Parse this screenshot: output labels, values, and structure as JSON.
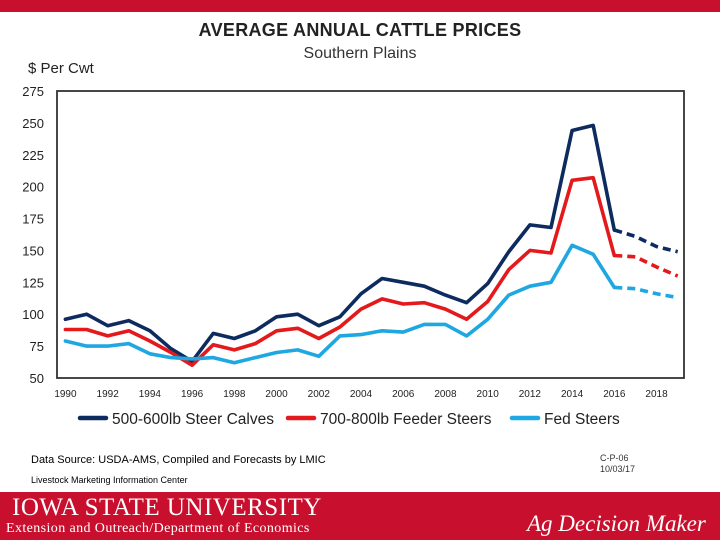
{
  "chart_data": {
    "type": "line",
    "title": "AVERAGE ANNUAL CATTLE PRICES",
    "subtitle": "Southern Plains",
    "ylabel": "$ Per Cwt",
    "xlabel": "",
    "ylim": [
      50,
      275
    ],
    "xlim": [
      1989.6,
      2019.3
    ],
    "yticks": [
      50,
      75,
      100,
      125,
      150,
      175,
      200,
      225,
      250,
      275
    ],
    "xticks": [
      1990,
      1992,
      1994,
      1996,
      1998,
      2000,
      2002,
      2004,
      2006,
      2008,
      2010,
      2012,
      2014,
      2016,
      2018
    ],
    "legend_position": "bottom",
    "series": [
      {
        "name": "500-600lb Steer Calves",
        "color": "#0d2b5e",
        "x": [
          1990,
          1991,
          1992,
          1993,
          1994,
          1995,
          1996,
          1997,
          1998,
          1999,
          2000,
          2001,
          2002,
          2003,
          2004,
          2005,
          2006,
          2007,
          2008,
          2009,
          2010,
          2011,
          2012,
          2013,
          2014,
          2015,
          2016
        ],
        "values": [
          96,
          100,
          91,
          95,
          87,
          73,
          63,
          85,
          81,
          87,
          98,
          100,
          91,
          98,
          116,
          128,
          125,
          122,
          115,
          109,
          124,
          149,
          170,
          168,
          244,
          248,
          166
        ],
        "forecast_x": [
          2016,
          2017,
          2018,
          2019
        ],
        "forecast_values": [
          166,
          161,
          153,
          149
        ]
      },
      {
        "name": "700-800lb Feeder Steers",
        "color": "#e3191c",
        "x": [
          1990,
          1991,
          1992,
          1993,
          1994,
          1995,
          1996,
          1997,
          1998,
          1999,
          2000,
          2001,
          2002,
          2003,
          2004,
          2005,
          2006,
          2007,
          2008,
          2009,
          2010,
          2011,
          2012,
          2013,
          2014,
          2015,
          2016
        ],
        "values": [
          88,
          88,
          83,
          87,
          79,
          70,
          60,
          76,
          72,
          77,
          87,
          89,
          81,
          90,
          104,
          112,
          108,
          109,
          104,
          96,
          110,
          135,
          150,
          148,
          205,
          207,
          146
        ],
        "forecast_x": [
          2016,
          2017,
          2018,
          2019
        ],
        "forecast_values": [
          146,
          145,
          137,
          130
        ]
      },
      {
        "name": "Fed Steers",
        "color": "#1ea7e1",
        "x": [
          1990,
          1991,
          1992,
          1993,
          1994,
          1995,
          1996,
          1997,
          1998,
          1999,
          2000,
          2001,
          2002,
          2003,
          2004,
          2005,
          2006,
          2007,
          2008,
          2009,
          2010,
          2011,
          2012,
          2013,
          2014,
          2015,
          2016
        ],
        "values": [
          79,
          75,
          75,
          77,
          69,
          66,
          65,
          66,
          62,
          66,
          70,
          72,
          67,
          83,
          84,
          87,
          86,
          92,
          92,
          83,
          96,
          115,
          122,
          125,
          154,
          147,
          121
        ],
        "forecast_x": [
          2016,
          2017,
          2018,
          2019
        ],
        "forecast_values": [
          121,
          120,
          116,
          113
        ]
      }
    ]
  },
  "footer": {
    "source": "Data Source:  USDA-AMS, Compiled and Forecasts by LMIC",
    "center": "Livestock Marketing Information Center",
    "code_line1": "C-P-06",
    "code_line2": "10/03/17",
    "university": "IOWA STATE UNIVERSITY",
    "department": "Extension and Outreach/Department of Economics",
    "brand": "Ag Decision Maker"
  },
  "colors": {
    "accent": "#c8102e",
    "navy": "#0d2b5e",
    "red": "#e3191c",
    "cyan": "#1ea7e1"
  }
}
